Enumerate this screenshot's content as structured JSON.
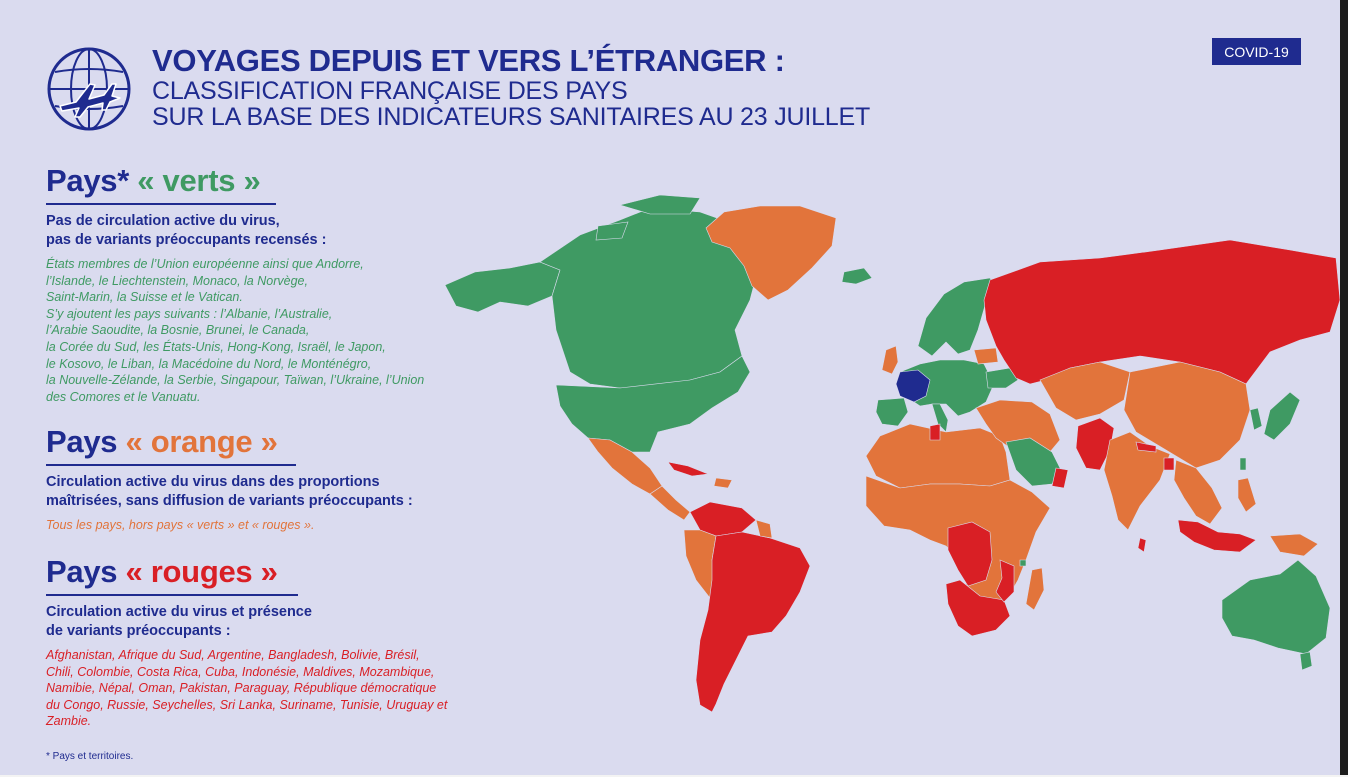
{
  "badge": "COVID-19",
  "title": {
    "main": "VOYAGES DEPUIS ET VERS L’ÉTRANGER :",
    "sub_line1": "CLASSIFICATION FRANÇAISE DES PAYS",
    "sub_line2": "SUR LA BASE DES INDICATEURS SANITAIRES AU 23 JUILLET"
  },
  "icons": {
    "logo": "airplane-globe-icon"
  },
  "colors": {
    "verts": "#3f9a63",
    "orange": "#e2743b",
    "rouges": "#d91f25",
    "france": "#1f2b8f",
    "navy": "#1f2b8f",
    "background": "#dadbef"
  },
  "sections": {
    "verts": {
      "prefix": "Pays*",
      "label": "« verts »",
      "desc_line1": "Pas de circulation active du virus,",
      "desc_line2": "pas de variants préoccupants recensés :",
      "list_lines": [
        "États membres de l’Union européenne ainsi que Andorre,",
        "l’Islande, le Liechtenstein, Monaco, la Norvège,",
        "Saint-Marin, la Suisse et le Vatican.",
        "S’y ajoutent les pays suivants : l’Albanie, l’Australie,",
        "l’Arabie Saoudite, la Bosnie, Brunei, le Canada,",
        "la Corée du Sud, les États-Unis, Hong-Kong, Israël, le Japon,",
        "le Kosovo, le Liban, la Macédoine du Nord, le Monténégro,",
        "la Nouvelle-Zélande, la Serbie, Singapour, Taïwan, l’Ukraine, l’Union",
        "des Comores et le Vanuatu."
      ]
    },
    "orange": {
      "prefix": "Pays",
      "label": "« orange »",
      "desc_line1": "Circulation active du virus dans des proportions",
      "desc_line2": "maîtrisées, sans diffusion de variants préoccupants :",
      "list_lines": [
        "Tous les pays, hors pays « verts » et « rouges »."
      ]
    },
    "rouges": {
      "prefix": "Pays",
      "label": "« rouges »",
      "desc_line1": "Circulation active du virus et présence",
      "desc_line2": "de variants préoccupants :",
      "list_lines": [
        "Afghanistan, Afrique du Sud, Argentine, Bangladesh, Bolivie, Brésil,",
        "Chili, Colombie, Costa Rica, Cuba, Indonésie, Maldives, Mozambique,",
        "Namibie, Népal, Oman, Pakistan, Paraguay, République démocratique",
        "du Congo, Russie, Seychelles, Sri Lanka, Suriname, Tunisie, Uruguay et",
        "Zambie."
      ]
    }
  },
  "footnote": "* Pays et territoires.",
  "map_regions": [
    {
      "name": "alaska",
      "category": "verts"
    },
    {
      "name": "canada",
      "category": "verts"
    },
    {
      "name": "arctic-islands",
      "category": "verts"
    },
    {
      "name": "usa",
      "category": "verts"
    },
    {
      "name": "mexico",
      "category": "orange"
    },
    {
      "name": "central-america",
      "category": "orange"
    },
    {
      "name": "cuba",
      "category": "rouges"
    },
    {
      "name": "caribbean",
      "category": "orange"
    },
    {
      "name": "colombia-venezuela",
      "category": "rouges"
    },
    {
      "name": "ecuador-peru",
      "category": "orange"
    },
    {
      "name": "brazil-and-south",
      "category": "rouges"
    },
    {
      "name": "guianas",
      "category": "orange"
    },
    {
      "name": "greenland",
      "category": "orange"
    },
    {
      "name": "iceland",
      "category": "verts"
    },
    {
      "name": "uk-ireland",
      "category": "orange"
    },
    {
      "name": "scandinavia",
      "category": "verts"
    },
    {
      "name": "europe",
      "category": "verts"
    },
    {
      "name": "france",
      "category": "france"
    },
    {
      "name": "iberia",
      "category": "verts"
    },
    {
      "name": "italy",
      "category": "verts"
    },
    {
      "name": "ukraine",
      "category": "verts"
    },
    {
      "name": "belarus",
      "category": "orange"
    },
    {
      "name": "russia",
      "category": "rouges"
    },
    {
      "name": "north-africa",
      "category": "orange"
    },
    {
      "name": "tunisia",
      "category": "rouges"
    },
    {
      "name": "sub-saharan-africa",
      "category": "orange"
    },
    {
      "name": "drc-zambia",
      "category": "rouges"
    },
    {
      "name": "south-africa-namibia",
      "category": "rouges"
    },
    {
      "name": "mozambique",
      "category": "rouges"
    },
    {
      "name": "madagascar",
      "category": "orange"
    },
    {
      "name": "comoros",
      "category": "verts"
    },
    {
      "name": "turkey-middle-east",
      "category": "orange"
    },
    {
      "name": "saudi-arabia",
      "category": "verts"
    },
    {
      "name": "oman",
      "category": "rouges"
    },
    {
      "name": "afghanistan-pakistan",
      "category": "rouges"
    },
    {
      "name": "central-asia",
      "category": "orange"
    },
    {
      "name": "india",
      "category": "orange"
    },
    {
      "name": "nepal",
      "category": "rouges"
    },
    {
      "name": "bangladesh",
      "category": "rouges"
    },
    {
      "name": "sri-lanka",
      "category": "rouges"
    },
    {
      "name": "china-mongolia",
      "category": "orange"
    },
    {
      "name": "southeast-asia",
      "category": "orange"
    },
    {
      "name": "korea",
      "category": "verts"
    },
    {
      "name": "japan",
      "category": "verts"
    },
    {
      "name": "taiwan",
      "category": "verts"
    },
    {
      "name": "philippines",
      "category": "orange"
    },
    {
      "name": "indonesia",
      "category": "rouges"
    },
    {
      "name": "papua",
      "category": "orange"
    },
    {
      "name": "australia",
      "category": "verts"
    },
    {
      "name": "new-zealand",
      "category": "verts"
    }
  ]
}
